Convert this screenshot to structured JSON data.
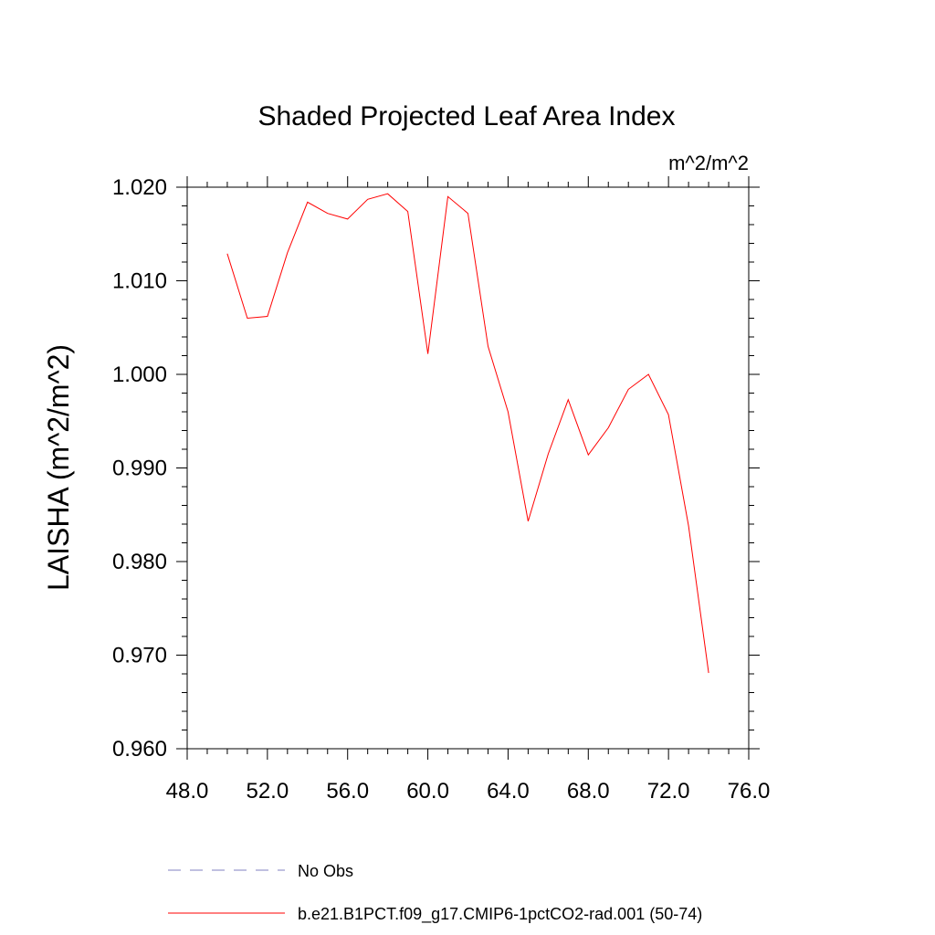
{
  "chart_data": {
    "type": "line",
    "title": "Shaded Projected Leaf Area Index",
    "units_label": "m^2/m^2",
    "ylabel": "LAISHA  (m^2/m^2)",
    "xlabel": "",
    "xlim": [
      48.0,
      76.0
    ],
    "ylim": [
      0.96,
      1.02
    ],
    "x_ticks": [
      48.0,
      52.0,
      56.0,
      60.0,
      64.0,
      68.0,
      72.0,
      76.0
    ],
    "x_tick_labels": [
      "48.0",
      "52.0",
      "56.0",
      "60.0",
      "64.0",
      "68.0",
      "72.0",
      "76.0"
    ],
    "y_ticks": [
      0.96,
      0.97,
      0.98,
      0.99,
      1.0,
      1.01,
      1.02
    ],
    "y_tick_labels": [
      "0.960",
      "0.970",
      "0.980",
      "0.990",
      "1.000",
      "1.010",
      "1.020"
    ],
    "grid": false,
    "legend_position": "bottom",
    "series": [
      {
        "name": "No Obs",
        "color": "#8080c0",
        "dashed": true,
        "x": [],
        "y": []
      },
      {
        "name": "b.e21.B1PCT.f09_g17.CMIP6-1pctCO2-rad.001 (50-74)",
        "color": "#ff0000",
        "dashed": false,
        "x": [
          50,
          51,
          52,
          53,
          54,
          55,
          56,
          57,
          58,
          59,
          60,
          61,
          62,
          63,
          64,
          65,
          66,
          67,
          68,
          69,
          70,
          71,
          72,
          73,
          74
        ],
        "y": [
          1.0129,
          1.006,
          1.0062,
          1.013,
          1.0184,
          1.0172,
          1.0166,
          1.0187,
          1.0193,
          1.0174,
          1.0022,
          1.019,
          1.0172,
          1.003,
          0.996,
          0.9843,
          0.9915,
          0.9973,
          0.9914,
          0.9943,
          0.9984,
          1.0,
          0.9957,
          0.9838,
          0.9681
        ]
      }
    ]
  }
}
